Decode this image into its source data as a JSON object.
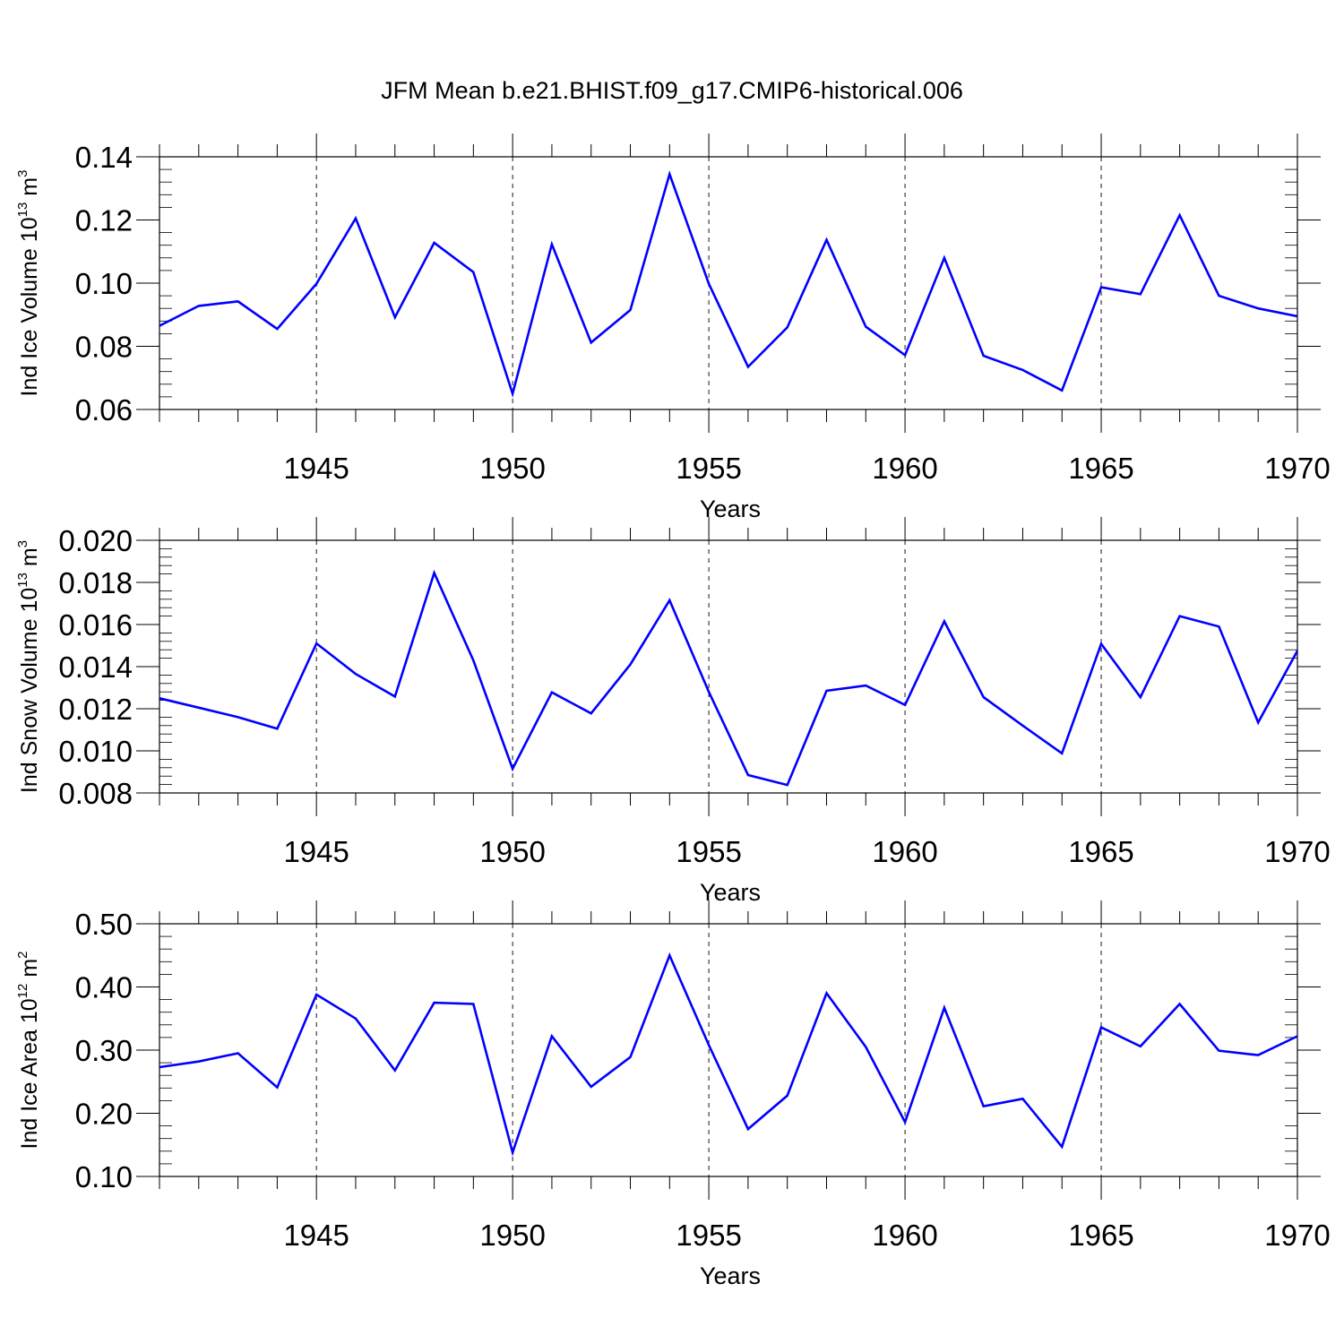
{
  "figure": {
    "title": "JFM Mean b.e21.BHIST.f09_g17.CMIP6-historical.006"
  },
  "colors": {
    "line": "#0000ff",
    "axes": "#000000",
    "grid": "#000000"
  },
  "chart_data": [
    {
      "type": "line",
      "title": "",
      "xlabel": "Years",
      "ylabel": {
        "text": "Ind Ice Volume 10",
        "exp": "13",
        "unit": " m",
        "unit_exp": "3"
      },
      "xlim": [
        1941,
        1970
      ],
      "ylim": [
        0.06,
        0.14
      ],
      "x_ticks": [
        1945,
        1950,
        1955,
        1960,
        1965,
        1970
      ],
      "y_ticks": [
        "0.06",
        "0.08",
        "0.10",
        "0.12",
        "0.14"
      ],
      "vertical_grid": "dashed at major x ticks",
      "series": [
        {
          "x": [
            1941,
            1942,
            1943,
            1944,
            1945,
            1946,
            1947,
            1948,
            1949,
            1950,
            1951,
            1952,
            1953,
            1954,
            1955,
            1956,
            1957,
            1958,
            1959,
            1960,
            1961,
            1962,
            1963,
            1964,
            1965,
            1966,
            1967,
            1968,
            1969,
            1970
          ],
          "values": [
            0.0865,
            0.0928,
            0.0942,
            0.0855,
            0.0998,
            0.1205,
            0.0892,
            0.1128,
            0.1035,
            0.065,
            0.1123,
            0.0812,
            0.0915,
            0.1345,
            0.0998,
            0.0735,
            0.086,
            0.1137,
            0.0862,
            0.0772,
            0.108,
            0.077,
            0.0725,
            0.066,
            0.0987,
            0.0965,
            0.1215,
            0.096,
            0.092,
            0.0895
          ]
        }
      ]
    },
    {
      "type": "line",
      "title": "",
      "xlabel": "Years",
      "ylabel": {
        "text": "Ind Snow Volume 10",
        "exp": "13",
        "unit": " m",
        "unit_exp": "3"
      },
      "xlim": [
        1941,
        1970
      ],
      "ylim": [
        0.008,
        0.02
      ],
      "x_ticks": [
        1945,
        1950,
        1955,
        1960,
        1965,
        1970
      ],
      "y_ticks": [
        "0.008",
        "0.010",
        "0.012",
        "0.014",
        "0.016",
        "0.018",
        "0.020"
      ],
      "vertical_grid": "dashed at major x ticks",
      "series": [
        {
          "x": [
            1941,
            1942,
            1943,
            1944,
            1945,
            1946,
            1947,
            1948,
            1949,
            1950,
            1951,
            1952,
            1953,
            1954,
            1955,
            1956,
            1957,
            1958,
            1959,
            1960,
            1961,
            1962,
            1963,
            1964,
            1965,
            1966,
            1967,
            1968,
            1969,
            1970
          ],
          "values": [
            0.0125,
            0.01205,
            0.0116,
            0.01105,
            0.0151,
            0.01365,
            0.01258,
            0.01845,
            0.0143,
            0.00915,
            0.01278,
            0.01178,
            0.0141,
            0.01715,
            0.0128,
            0.00885,
            0.00838,
            0.01285,
            0.0131,
            0.01218,
            0.01615,
            0.01255,
            0.0112,
            0.00988,
            0.01508,
            0.01255,
            0.0164,
            0.0159,
            0.01135,
            0.01475
          ]
        }
      ]
    },
    {
      "type": "line",
      "title": "",
      "xlabel": "Years",
      "ylabel": {
        "text": "Ind Ice Area 10",
        "exp": "12",
        "unit": " m",
        "unit_exp": "2"
      },
      "xlim": [
        1941,
        1970
      ],
      "ylim": [
        0.1,
        0.5
      ],
      "x_ticks": [
        1945,
        1950,
        1955,
        1960,
        1965,
        1970
      ],
      "y_ticks": [
        "0.10",
        "0.20",
        "0.30",
        "0.40",
        "0.50"
      ],
      "vertical_grid": "dashed at major x ticks",
      "series": [
        {
          "x": [
            1941,
            1942,
            1943,
            1944,
            1945,
            1946,
            1947,
            1948,
            1949,
            1950,
            1951,
            1952,
            1953,
            1954,
            1955,
            1956,
            1957,
            1958,
            1959,
            1960,
            1961,
            1962,
            1963,
            1964,
            1965,
            1966,
            1967,
            1968,
            1969,
            1970
          ],
          "values": [
            0.273,
            0.282,
            0.295,
            0.241,
            0.388,
            0.35,
            0.268,
            0.375,
            0.373,
            0.138,
            0.322,
            0.242,
            0.289,
            0.45,
            0.308,
            0.175,
            0.228,
            0.39,
            0.305,
            0.186,
            0.367,
            0.211,
            0.223,
            0.147,
            0.336,
            0.306,
            0.373,
            0.299,
            0.292,
            0.322
          ]
        }
      ]
    }
  ]
}
